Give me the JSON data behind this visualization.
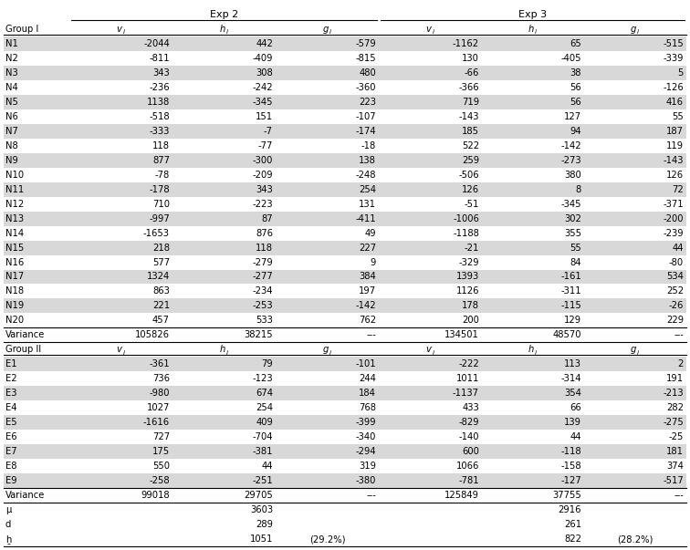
{
  "exp2_header": "Exp 2",
  "exp3_header": "Exp 3",
  "col_labels": [
    "v",
    "h",
    "g"
  ],
  "group1_label": "Group I",
  "group2_label": "Group II",
  "group1_rows": [
    [
      "N1",
      "-2044",
      "442",
      "-579",
      "-1162",
      "65",
      "-515"
    ],
    [
      "N2",
      "-811",
      "-409",
      "-815",
      "130",
      "-405",
      "-339"
    ],
    [
      "N3",
      "343",
      "308",
      "480",
      "-66",
      "38",
      "5"
    ],
    [
      "N4",
      "-236",
      "-242",
      "-360",
      "-366",
      "56",
      "-126"
    ],
    [
      "N5",
      "1138",
      "-345",
      "223",
      "719",
      "56",
      "416"
    ],
    [
      "N6",
      "-518",
      "151",
      "-107",
      "-143",
      "127",
      "55"
    ],
    [
      "N7",
      "-333",
      "-7",
      "-174",
      "185",
      "94",
      "187"
    ],
    [
      "N8",
      "118",
      "-77",
      "-18",
      "522",
      "-142",
      "119"
    ],
    [
      "N9",
      "877",
      "-300",
      "138",
      "259",
      "-273",
      "-143"
    ],
    [
      "N10",
      "-78",
      "-209",
      "-248",
      "-506",
      "380",
      "126"
    ],
    [
      "N11",
      "-178",
      "343",
      "254",
      "126",
      "8",
      "72"
    ],
    [
      "N12",
      "710",
      "-223",
      "131",
      "-51",
      "-345",
      "-371"
    ],
    [
      "N13",
      "-997",
      "87",
      "-411",
      "-1006",
      "302",
      "-200"
    ],
    [
      "N14",
      "-1653",
      "876",
      "49",
      "-1188",
      "355",
      "-239"
    ],
    [
      "N15",
      "218",
      "118",
      "227",
      "-21",
      "55",
      "44"
    ],
    [
      "N16",
      "577",
      "-279",
      "9",
      "-329",
      "84",
      "-80"
    ],
    [
      "N17",
      "1324",
      "-277",
      "384",
      "1393",
      "-161",
      "534"
    ],
    [
      "N18",
      "863",
      "-234",
      "197",
      "1126",
      "-311",
      "252"
    ],
    [
      "N19",
      "221",
      "-253",
      "-142",
      "178",
      "-115",
      "-26"
    ],
    [
      "N20",
      "457",
      "533",
      "762",
      "200",
      "129",
      "229"
    ]
  ],
  "variance_row1": [
    "Variance",
    "105826",
    "38215",
    "---",
    "134501",
    "48570",
    "---"
  ],
  "group2_rows": [
    [
      "E1",
      "-361",
      "79",
      "-101",
      "-222",
      "113",
      "2"
    ],
    [
      "E2",
      "736",
      "-123",
      "244",
      "1011",
      "-314",
      "191"
    ],
    [
      "E3",
      "-980",
      "674",
      "184",
      "-1137",
      "354",
      "-213"
    ],
    [
      "E4",
      "1027",
      "254",
      "768",
      "433",
      "66",
      "282"
    ],
    [
      "E5",
      "-1616",
      "409",
      "-399",
      "-829",
      "139",
      "-275"
    ],
    [
      "E6",
      "727",
      "-704",
      "-340",
      "-140",
      "44",
      "-25"
    ],
    [
      "E7",
      "175",
      "-381",
      "-294",
      "600",
      "-118",
      "181"
    ],
    [
      "E8",
      "550",
      "44",
      "319",
      "1066",
      "-158",
      "374"
    ],
    [
      "E9",
      "-258",
      "-251",
      "-380",
      "-781",
      "-127",
      "-517"
    ]
  ],
  "variance_row2": [
    "Variance",
    "99018",
    "29705",
    "---",
    "125849",
    "37755",
    "---"
  ],
  "mu_row": [
    "μ",
    "",
    "3603",
    "",
    "",
    "2916",
    ""
  ],
  "d_row": [
    "d",
    "",
    "289",
    "",
    "",
    "261",
    ""
  ],
  "hbar_row": [
    "ẖ",
    "",
    "1051",
    "(29.2%)",
    "",
    "822",
    "(28.2%)"
  ],
  "bg_gray": "#d8d8d8",
  "bg_white": "#ffffff",
  "font_size": 7.2,
  "header_font_size": 8.0
}
